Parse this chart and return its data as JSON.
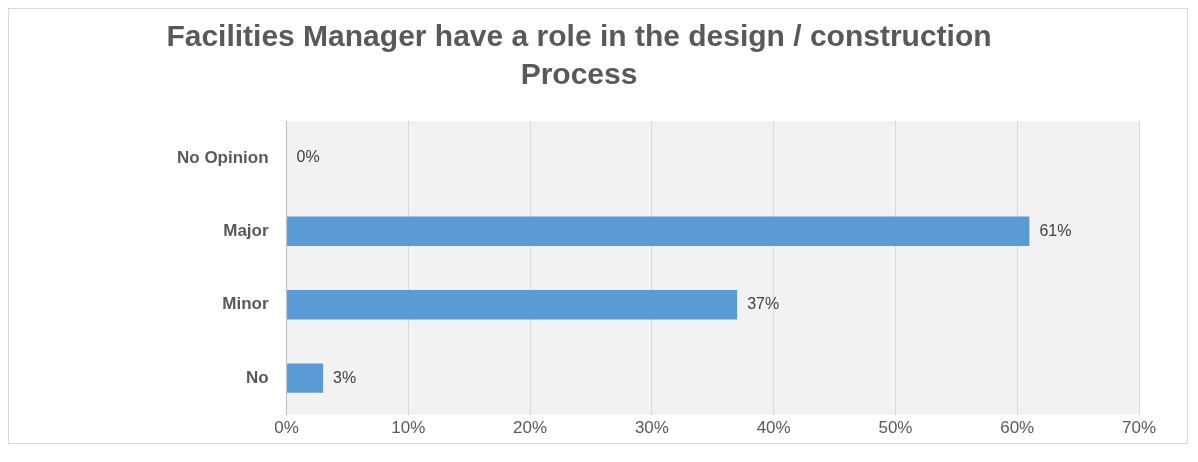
{
  "chart_data": {
    "type": "bar",
    "orientation": "horizontal",
    "title": "Facilities Manager have a role in the design / construction Process",
    "categories": [
      "No Opinion",
      "Major",
      "Minor",
      "No"
    ],
    "values": [
      0,
      61,
      37,
      3
    ],
    "value_labels": [
      "0%",
      "61%",
      "37%",
      "3%"
    ],
    "color": "#5b9bd5",
    "xlim": [
      0,
      70
    ],
    "xticks": [
      {
        "value": 0,
        "label": "0%"
      },
      {
        "value": 10,
        "label": "10%"
      },
      {
        "value": 20,
        "label": "20%"
      },
      {
        "value": 30,
        "label": "30%"
      },
      {
        "value": 40,
        "label": "40%"
      },
      {
        "value": 50,
        "label": "50%"
      },
      {
        "value": 60,
        "label": "60%"
      },
      {
        "value": 70,
        "label": "70%"
      }
    ],
    "grid": "x",
    "legend": false
  }
}
